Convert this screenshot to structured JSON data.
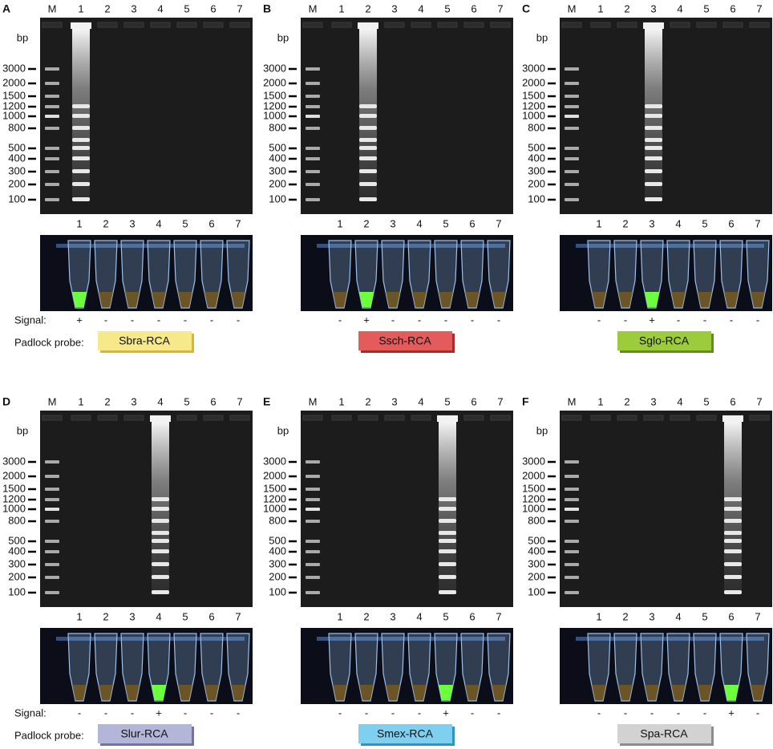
{
  "rows": [
    {
      "signal_label": "Signal:",
      "probe_label": "Padlock probe:",
      "panels": [
        {
          "letter": "A",
          "lanes": [
            "M",
            "1",
            "2",
            "3",
            "4",
            "5",
            "6",
            "7"
          ],
          "bp": "bp",
          "ladder": [
            "3000",
            "2000",
            "1500",
            "1200",
            "1000",
            "800",
            "500",
            "400",
            "300",
            "200",
            "100"
          ],
          "tube_lanes": [
            "1",
            "2",
            "3",
            "4",
            "5",
            "6",
            "7"
          ],
          "signals": [
            "+",
            "-",
            "-",
            "-",
            "-",
            "-",
            "-"
          ],
          "probe": "Sbra-RCA"
        },
        {
          "letter": "B",
          "lanes": [
            "M",
            "1",
            "2",
            "3",
            "4",
            "5",
            "6",
            "7"
          ],
          "bp": "bp",
          "ladder": [
            "3000",
            "2000",
            "1500",
            "1200",
            "1000",
            "800",
            "500",
            "400",
            "300",
            "200",
            "100"
          ],
          "tube_lanes": [
            "1",
            "2",
            "3",
            "4",
            "5",
            "6",
            "7"
          ],
          "signals": [
            "-",
            "+",
            "-",
            "-",
            "-",
            "-",
            "-"
          ],
          "probe": "Ssch-RCA"
        },
        {
          "letter": "C",
          "lanes": [
            "M",
            "1",
            "2",
            "3",
            "4",
            "5",
            "6",
            "7"
          ],
          "bp": "bp",
          "ladder": [
            "3000",
            "2000",
            "1500",
            "1200",
            "1000",
            "800",
            "500",
            "400",
            "300",
            "200",
            "100"
          ],
          "tube_lanes": [
            "1",
            "2",
            "3",
            "4",
            "5",
            "6",
            "7"
          ],
          "signals": [
            "-",
            "-",
            "+",
            "-",
            "-",
            "-",
            "-"
          ],
          "probe": "Sglo-RCA"
        }
      ]
    },
    {
      "signal_label": "Signal:",
      "probe_label": "Padlock probe:",
      "panels": [
        {
          "letter": "D",
          "lanes": [
            "M",
            "1",
            "2",
            "3",
            "4",
            "5",
            "6",
            "7"
          ],
          "bp": "bp",
          "ladder": [
            "3000",
            "2000",
            "1500",
            "1200",
            "1000",
            "800",
            "500",
            "400",
            "300",
            "200",
            "100"
          ],
          "tube_lanes": [
            "1",
            "2",
            "3",
            "4",
            "5",
            "6",
            "7"
          ],
          "signals": [
            "-",
            "-",
            "-",
            "+",
            "-",
            "-",
            "-"
          ],
          "probe": "Slur-RCA"
        },
        {
          "letter": "E",
          "lanes": [
            "M",
            "1",
            "2",
            "3",
            "4",
            "5",
            "6",
            "7"
          ],
          "bp": "bp",
          "ladder": [
            "3000",
            "2000",
            "1500",
            "1200",
            "1000",
            "800",
            "500",
            "400",
            "300",
            "200",
            "100"
          ],
          "tube_lanes": [
            "1",
            "2",
            "3",
            "4",
            "5",
            "6",
            "7"
          ],
          "signals": [
            "-",
            "-",
            "-",
            "-",
            "+",
            "-",
            "-"
          ],
          "probe": "Smex-RCA"
        },
        {
          "letter": "F",
          "lanes": [
            "M",
            "1",
            "2",
            "3",
            "4",
            "5",
            "6",
            "7"
          ],
          "bp": "bp",
          "ladder": [
            "3000",
            "2000",
            "1500",
            "1200",
            "1000",
            "800",
            "500",
            "400",
            "300",
            "200",
            "100"
          ],
          "tube_lanes": [
            "1",
            "2",
            "3",
            "4",
            "5",
            "6",
            "7"
          ],
          "signals": [
            "-",
            "-",
            "-",
            "-",
            "-",
            "+",
            "-"
          ],
          "probe": "Spa-RCA"
        }
      ]
    }
  ]
}
